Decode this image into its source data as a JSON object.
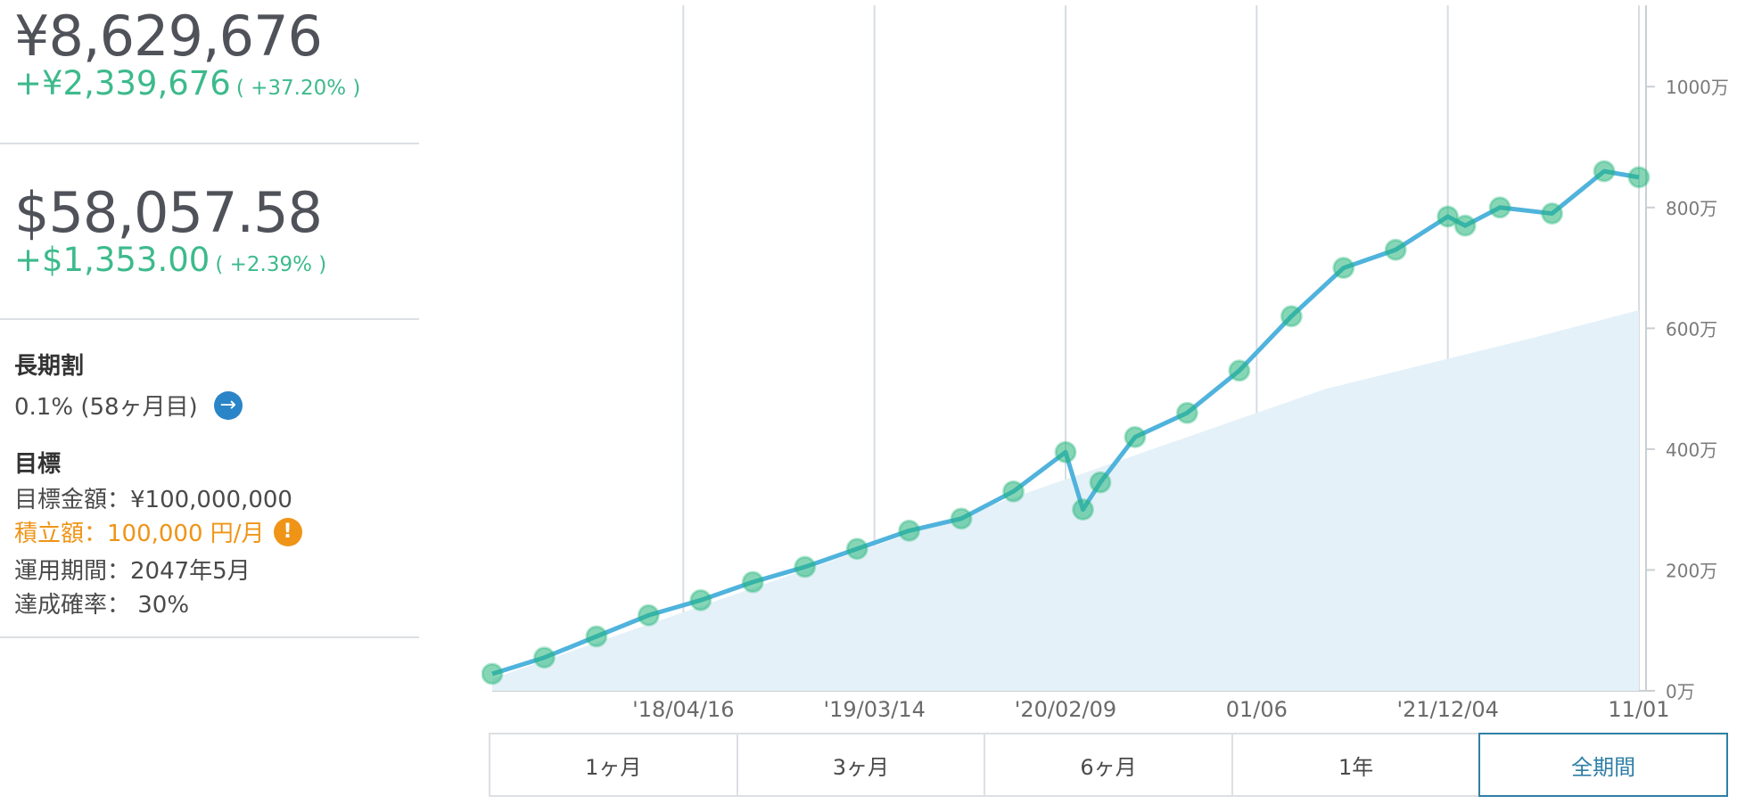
{
  "portfolio": {
    "jpy_value": "¥8,629,676",
    "jpy_change": "+¥2,339,676",
    "jpy_change_pct": "( +37.20% )",
    "usd_value": "$58,057.58",
    "usd_change": "+$1,353.00",
    "usd_change_pct": "( +2.39% )"
  },
  "discount": {
    "heading": "長期割",
    "value": "0.1% (58ヶ月目)",
    "arrow_icon": "arrow-right-icon"
  },
  "goal": {
    "heading": "目標",
    "target": "目標金額：¥100,000,000",
    "contribution": "積立額：100,000 円/月",
    "warning_icon": "exclamation-icon",
    "period": "運用期間：2047年5月",
    "probability": "達成確率： 30%"
  },
  "ranges": [
    "1ヶ月",
    "3ヶ月",
    "6ヶ月",
    "1年",
    "全期間"
  ],
  "selected_range": "全期間",
  "colors": {
    "value_line": "#4fb3dc",
    "value_markers": "#22b47a",
    "principal_area": "#e5f1f8",
    "positive": "#3dba8c",
    "warning": "#ef9417",
    "selected": "#2f7fa6"
  },
  "chart_data": {
    "type": "line",
    "title": "",
    "xlabel": "",
    "ylabel": "",
    "x_tick_labels": [
      "'18/04/16",
      "'19/03/14",
      "'20/02/09",
      "01/06",
      "'21/12/04",
      "11/01"
    ],
    "y_tick_labels": [
      "0万",
      "200万",
      "400万",
      "600万",
      "800万",
      "1000万"
    ],
    "ylim": [
      0,
      1100
    ],
    "y_unit": "万",
    "grid": "vertical",
    "series": [
      {
        "kind": "line-with-markers",
        "x": [
          "2017-05",
          "2017-08",
          "2017-11",
          "2018-02",
          "2018-05",
          "2018-08",
          "2018-11",
          "2019-02",
          "2019-05",
          "2019-08",
          "2019-11",
          "2020-02",
          "2020-03",
          "2020-04",
          "2020-06",
          "2020-09",
          "2020-12",
          "2021-03",
          "2021-06",
          "2021-09",
          "2021-12",
          "2022-01",
          "2022-03",
          "2022-06",
          "2022-09",
          "2022-11"
        ],
        "values": [
          28,
          55,
          90,
          125,
          150,
          180,
          205,
          235,
          265,
          285,
          330,
          395,
          300,
          345,
          420,
          460,
          530,
          620,
          700,
          730,
          785,
          770,
          800,
          790,
          860,
          850
        ]
      },
      {
        "kind": "area",
        "x": [
          "2017-05",
          "2018-05",
          "2019-05",
          "2020-05",
          "2021-05",
          "2022-05",
          "2022-11"
        ],
        "values": [
          20,
          140,
          260,
          380,
          500,
          585,
          630
        ]
      }
    ]
  }
}
